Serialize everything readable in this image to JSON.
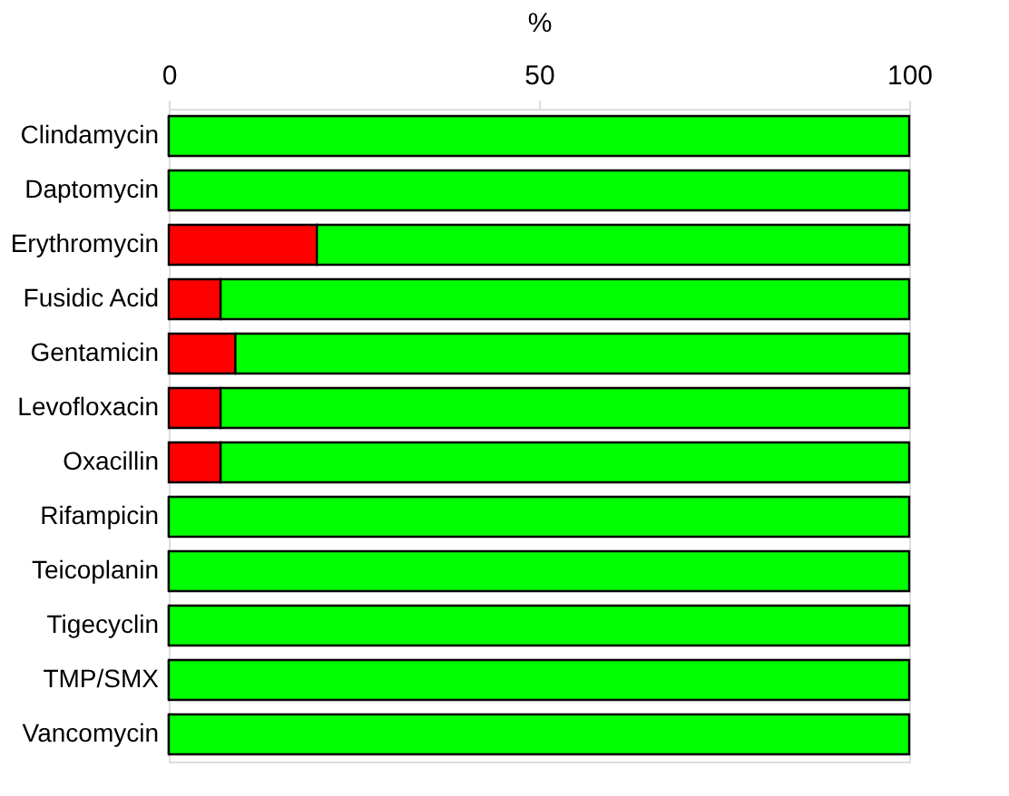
{
  "chart_data": {
    "type": "bar",
    "orientation": "horizontal",
    "stacked": true,
    "xlabel": "%",
    "categories": [
      "Clindamycin",
      "Daptomycin",
      "Erythromycin",
      "Fusidic Acid",
      "Gentamicin",
      "Levofloxacin",
      "Oxacillin",
      "Rifampicin",
      "Teicoplanin",
      "Tigecyclin",
      "TMP/SMX",
      "Vancomycin"
    ],
    "series": [
      {
        "color": "#ff0000",
        "values": [
          0,
          0,
          20,
          7,
          9,
          7,
          7,
          0,
          0,
          0,
          0,
          0
        ]
      },
      {
        "color": "#00ff00",
        "values": [
          100,
          100,
          80,
          93,
          91,
          93,
          93,
          100,
          100,
          100,
          100,
          100
        ]
      }
    ],
    "xlim": [
      0,
      100
    ],
    "xticks": [
      0,
      50,
      100
    ],
    "grid": false
  }
}
